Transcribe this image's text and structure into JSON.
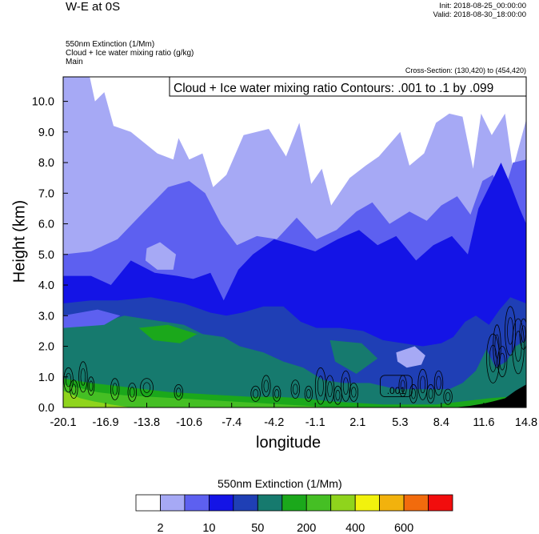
{
  "header": {
    "title": "W-E at 0S",
    "init": "Init: 2018-08-25_00:00:00",
    "valid": "Valid: 2018-08-30_18:00:00",
    "field1": "550nm Extinction   (1/Mm)",
    "field2": "Cloud + Ice water mixing ratio   (g/kg)",
    "field3": "Main",
    "cross_section": "Cross-Section: (130,420) to (454,420)"
  },
  "chart_data": {
    "type": "heatmap",
    "xlabel": "longitude",
    "ylabel": "Height (km)",
    "x_ticks": [
      "-20.1",
      "-16.9",
      "-13.8",
      "-10.6",
      "-7.4",
      "-4.2",
      "-1.1",
      "2.1",
      "5.3",
      "8.4",
      "11.6",
      "14.8"
    ],
    "y_ticks": [
      "0.0",
      "1.0",
      "2.0",
      "3.0",
      "4.0",
      "5.0",
      "6.0",
      "7.0",
      "8.0",
      "9.0",
      "10.0"
    ],
    "xlim": [
      -20.1,
      14.8
    ],
    "ylim": [
      0,
      10.8
    ],
    "contour_info": "Cloud + Ice water mixing ratio Contours: .001 to .1 by .099",
    "contour_label": ".001",
    "colorbar": {
      "title": "550nm Extinction  (1/Mm)",
      "colors": [
        "#ffffff",
        "#a6a9f5",
        "#5d60f0",
        "#1414e6",
        "#1f3fb5",
        "#167a6e",
        "#1ba81b",
        "#45bf24",
        "#8fd41c",
        "#f2f20d",
        "#f2b20d",
        "#f26b0d",
        "#f20d0d"
      ],
      "labels": [
        {
          "text": "2",
          "index": 1
        },
        {
          "text": "10",
          "index": 3
        },
        {
          "text": "50",
          "index": 5
        },
        {
          "text": "200",
          "index": 7
        },
        {
          "text": "400",
          "index": 9
        },
        {
          "text": "600",
          "index": 11
        }
      ]
    },
    "terrain_color": "#000000"
  }
}
